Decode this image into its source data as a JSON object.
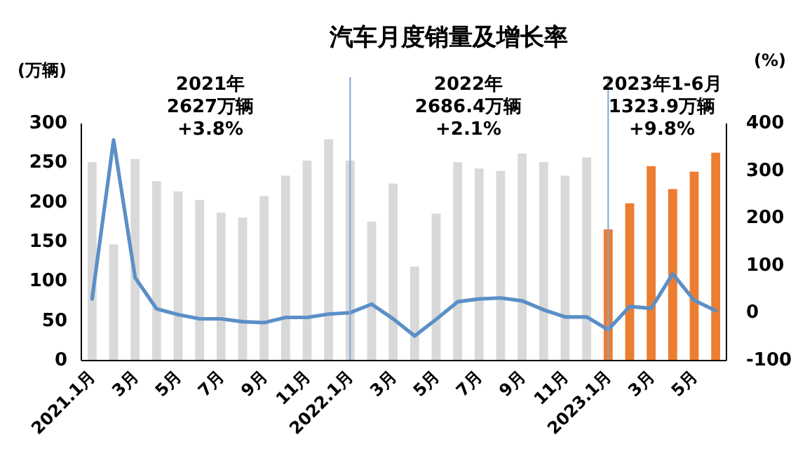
{
  "chart_data": {
    "type": "bar",
    "title": "汽车月度销量及增长率",
    "ylabel": "(万辆)",
    "y2label": "(%)",
    "categories": [
      "2021.1月",
      null,
      "3月",
      null,
      "5月",
      null,
      "7月",
      null,
      "9月",
      null,
      "11月",
      null,
      "2022.1月",
      null,
      "3月",
      null,
      "5月",
      null,
      "7月",
      null,
      "9月",
      null,
      "11月",
      null,
      "2023.1月",
      null,
      "3月",
      null,
      "5月",
      null
    ],
    "series": [
      {
        "colors": [
          "#d9d9d9",
          "#d9d9d9",
          "#d9d9d9",
          "#d9d9d9",
          "#d9d9d9",
          "#d9d9d9",
          "#d9d9d9",
          "#d9d9d9",
          "#d9d9d9",
          "#d9d9d9",
          "#d9d9d9",
          "#d9d9d9",
          "#d9d9d9",
          "#d9d9d9",
          "#d9d9d9",
          "#d9d9d9",
          "#d9d9d9",
          "#d9d9d9",
          "#d9d9d9",
          "#d9d9d9",
          "#d9d9d9",
          "#d9d9d9",
          "#d9d9d9",
          "#d9d9d9",
          "#ed7d31",
          "#ed7d31",
          "#ed7d31",
          "#ed7d31",
          "#ed7d31",
          "#ed7d31"
        ],
        "values": [
          251,
          147,
          255,
          227,
          214,
          203,
          187,
          181,
          208,
          234,
          253,
          280,
          253,
          176,
          224,
          119,
          186,
          251,
          243,
          240,
          262,
          251,
          234,
          257,
          166,
          199,
          246,
          217,
          239,
          263
        ]
      },
      {
        "type": "line",
        "axis": "y2",
        "color": "#5b8fc7",
        "values": [
          30,
          365,
          75,
          9,
          -3,
          -12,
          -12,
          -18,
          -20,
          -9,
          -9,
          -2,
          1,
          19,
          -12,
          -48,
          -13,
          24,
          30,
          32,
          26,
          7,
          -8,
          -8,
          -35,
          14,
          10,
          83,
          27,
          5
        ]
      }
    ],
    "ylim": [
      0,
      300
    ],
    "yticks": [
      0,
      50,
      100,
      150,
      200,
      250,
      300
    ],
    "y2lim": [
      -100,
      400
    ],
    "y2ticks": [
      -100,
      0,
      100,
      200,
      300,
      400
    ],
    "ref_lines": [
      {
        "axis": "x",
        "value": "2022.1月",
        "color": "#7fa7d4"
      },
      {
        "axis": "x",
        "value": "2023.1月",
        "color": "#7fa7d4"
      }
    ],
    "annotations": [
      "2021年\n2627万辆\n+3.8%",
      "2022年\n2686.4万辆\n+2.1%",
      "2023年1-6月\n1323.9万辆\n+9.8%"
    ],
    "grid": false,
    "legend": false,
    "marker": "none",
    "line_style": "solid"
  }
}
